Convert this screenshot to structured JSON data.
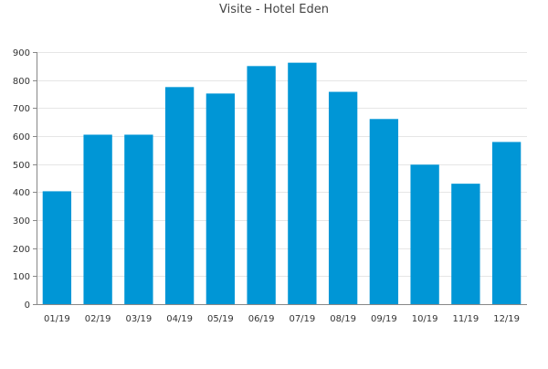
{
  "chart_data": {
    "type": "bar",
    "title": "Visite - Hotel Eden",
    "xlabel": "",
    "ylabel": "",
    "categories": [
      "01/19",
      "02/19",
      "03/19",
      "04/19",
      "05/19",
      "06/19",
      "07/19",
      "08/19",
      "09/19",
      "10/19",
      "11/19",
      "12/19"
    ],
    "values": [
      403,
      605,
      605,
      775,
      752,
      850,
      862,
      758,
      661,
      498,
      430,
      579
    ],
    "ylim": [
      0,
      900
    ],
    "yticks": [
      0,
      100,
      200,
      300,
      400,
      500,
      600,
      700,
      800,
      900
    ],
    "grid": true,
    "legend": "none",
    "bar_color": "#0096d6",
    "grid_color": "#e6e6e6",
    "axis_color": "#888888",
    "text_color": "#333333"
  }
}
